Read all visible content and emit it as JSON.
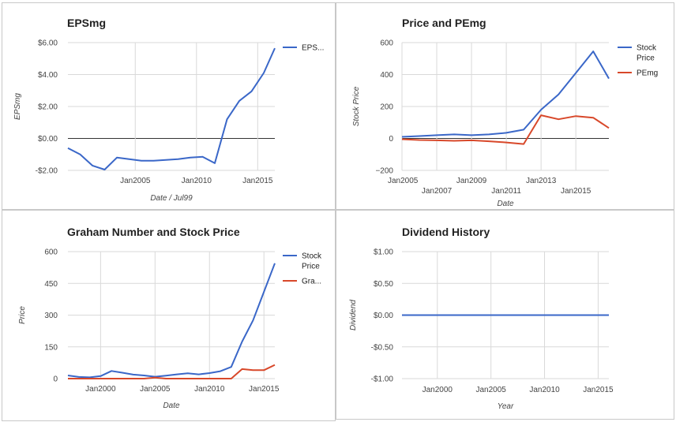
{
  "colors": {
    "series1": "#3a67c8",
    "series2": "#d8482a",
    "grid": "#d9d9d9",
    "zero": "#333333"
  },
  "chart_data": [
    {
      "type": "line",
      "title": "EPSmg",
      "xlabel": "Date / Jul99",
      "ylabel": "EPSmg",
      "xlim": [
        1999.5,
        2016.4
      ],
      "ylim": [
        -2,
        6
      ],
      "yticks": [
        -2,
        0,
        2,
        4,
        6
      ],
      "ytick_labels": [
        "-$2.00",
        "$0.00",
        "$2.00",
        "$4.00",
        "$6.00"
      ],
      "xticks": [
        2005,
        2010,
        2015
      ],
      "xtick_labels": [
        "Jan2005",
        "Jan2010",
        "Jan2015"
      ],
      "legend_position": "right",
      "series": [
        {
          "name": "EPS...",
          "x": [
            1999.5,
            2000.5,
            2001.5,
            2002.5,
            2003.5,
            2004.5,
            2005.5,
            2006.5,
            2007.5,
            2008.5,
            2009.5,
            2010.5,
            2011.5,
            2012.5,
            2013.5,
            2014.5,
            2015.5,
            2016.4
          ],
          "values": [
            -0.6,
            -1.0,
            -1.7,
            -1.95,
            -1.2,
            -1.3,
            -1.4,
            -1.4,
            -1.35,
            -1.3,
            -1.2,
            -1.15,
            -1.55,
            1.2,
            2.35,
            2.95,
            4.1,
            5.65
          ]
        }
      ]
    },
    {
      "type": "line",
      "title": "Price and PEmg",
      "xlabel": "Date",
      "ylabel": "Stock Price",
      "xlim": [
        2005,
        2016.9
      ],
      "ylim": [
        -200,
        600
      ],
      "yticks": [
        -200,
        0,
        200,
        400,
        600
      ],
      "ytick_labels": [
        "−200",
        "0",
        "200",
        "400",
        "600"
      ],
      "xticks": [
        2005,
        2007,
        2009,
        2011,
        2013,
        2015
      ],
      "xtick_labels": [
        "Jan2005",
        "Jan2007",
        "Jan2009",
        "Jan2011",
        "Jan2013",
        "Jan2015"
      ],
      "legend_position": "right",
      "series": [
        {
          "name": "Stock Price",
          "x": [
            2005,
            2006,
            2007,
            2008,
            2009,
            2010,
            2011,
            2012,
            2013,
            2014,
            2015,
            2016,
            2016.9
          ],
          "values": [
            10,
            15,
            20,
            25,
            20,
            25,
            35,
            55,
            180,
            275,
            410,
            545,
            375
          ]
        },
        {
          "name": "PEmg",
          "x": [
            2005,
            2006,
            2007,
            2008,
            2009,
            2010,
            2011,
            2012,
            2013,
            2014,
            2015,
            2016,
            2016.9
          ],
          "values": [
            -5,
            -10,
            -12,
            -15,
            -12,
            -18,
            -25,
            -35,
            145,
            120,
            140,
            130,
            65
          ]
        }
      ]
    },
    {
      "type": "line",
      "title": "Graham Number and Stock Price",
      "xlabel": "Date",
      "ylabel": "Price",
      "xlim": [
        1997,
        2016
      ],
      "ylim": [
        0,
        600
      ],
      "yticks": [
        0,
        150,
        300,
        450,
        600
      ],
      "ytick_labels": [
        "0",
        "150",
        "300",
        "450",
        "600"
      ],
      "xticks": [
        2000,
        2005,
        2010,
        2015
      ],
      "xtick_labels": [
        "Jan2000",
        "Jan2005",
        "Jan2010",
        "Jan2015"
      ],
      "legend_position": "right",
      "series": [
        {
          "name": "Stock Price",
          "x": [
            1997,
            1998,
            1999,
            2000,
            2001,
            2002,
            2003,
            2004,
            2005,
            2006,
            2007,
            2008,
            2009,
            2010,
            2011,
            2012,
            2013,
            2014,
            2015,
            2016
          ],
          "values": [
            15,
            8,
            6,
            12,
            36,
            28,
            19,
            15,
            9,
            14,
            20,
            25,
            20,
            26,
            35,
            55,
            175,
            275,
            410,
            545
          ]
        },
        {
          "name": "Gra...",
          "x": [
            1997,
            1998,
            1999,
            2000,
            2001,
            2002,
            2003,
            2004,
            2005,
            2006,
            2007,
            2008,
            2009,
            2010,
            2011,
            2012,
            2013,
            2014,
            2015,
            2016
          ],
          "values": [
            0,
            0,
            0,
            0,
            0,
            0,
            0,
            0,
            5,
            0,
            0,
            0,
            0,
            0,
            0,
            0,
            45,
            40,
            40,
            65
          ]
        }
      ]
    },
    {
      "type": "line",
      "title": "Dividend History",
      "xlabel": "Year",
      "ylabel": "Dividend",
      "xlim": [
        1996.7,
        2016
      ],
      "ylim": [
        -1,
        1
      ],
      "yticks": [
        -1,
        -0.5,
        0,
        0.5,
        1
      ],
      "ytick_labels": [
        "-$1.00",
        "-$0.50",
        "$0.00",
        "$0.50",
        "$1.00"
      ],
      "xticks": [
        2000,
        2005,
        2010,
        2015
      ],
      "xtick_labels": [
        "Jan2000",
        "Jan2005",
        "Jan2010",
        "Jan2015"
      ],
      "series": [
        {
          "x": [
            1996.7,
            2016
          ],
          "values": [
            0,
            0
          ]
        }
      ]
    }
  ]
}
